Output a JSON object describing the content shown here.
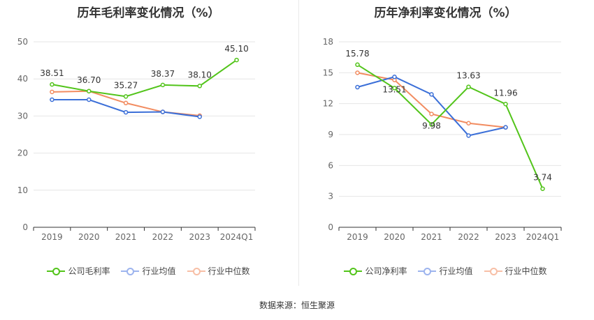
{
  "source": "数据来源：恒生聚源",
  "charts": [
    {
      "id": "left",
      "title": "历年毛利率变化情况（%）",
      "ylim": [
        0,
        50
      ],
      "yticks": [
        0,
        10,
        20,
        30,
        40,
        50
      ],
      "categories": [
        "2019",
        "2020",
        "2021",
        "2022",
        "2023",
        "2024Q1"
      ],
      "legend": [
        "公司毛利率",
        "行业均值",
        "行业中位数"
      ]
    },
    {
      "id": "right",
      "title": "历年净利率变化情况（%）",
      "ylim": [
        0,
        18
      ],
      "yticks": [
        0,
        3,
        6,
        9,
        12,
        15,
        18
      ],
      "categories": [
        "2019",
        "2020",
        "2021",
        "2022",
        "2023",
        "2024Q1"
      ],
      "legend": [
        "公司净利率",
        "行业均值",
        "行业中位数"
      ]
    }
  ],
  "chart_data": [
    {
      "type": "line",
      "title": "历年毛利率变化情况（%）",
      "categories": [
        "2019",
        "2020",
        "2021",
        "2022",
        "2023",
        "2024Q1"
      ],
      "ylim": [
        0,
        50
      ],
      "grid": true,
      "legend_position": "bottom",
      "series": [
        {
          "name": "公司毛利率",
          "color": "#52c41a",
          "values": [
            38.51,
            36.7,
            35.27,
            38.37,
            38.1,
            45.1
          ],
          "labels": [
            "38.51",
            "36.70",
            "35.27",
            "38.37",
            "38.10",
            "45.10"
          ]
        },
        {
          "name": "行业均值",
          "color": "#3b6fd8",
          "values": [
            34.4,
            34.4,
            31.0,
            31.1,
            29.8,
            null
          ]
        },
        {
          "name": "行业中位数",
          "color": "#f28c60",
          "values": [
            36.5,
            36.7,
            33.5,
            31.1,
            30.1,
            null
          ]
        }
      ]
    },
    {
      "type": "line",
      "title": "历年净利率变化情况（%）",
      "categories": [
        "2019",
        "2020",
        "2021",
        "2022",
        "2023",
        "2024Q1"
      ],
      "ylim": [
        0,
        18
      ],
      "grid": true,
      "legend_position": "bottom",
      "series": [
        {
          "name": "公司净利率",
          "color": "#52c41a",
          "values": [
            15.78,
            13.51,
            9.98,
            13.63,
            11.96,
            3.74
          ],
          "labels": [
            "15.78",
            "13.51",
            "9.98",
            "13.63",
            "11.96",
            "3.74"
          ]
        },
        {
          "name": "行业均值",
          "color": "#3b6fd8",
          "values": [
            13.6,
            14.6,
            12.9,
            8.9,
            9.7,
            null
          ]
        },
        {
          "name": "行业中位数",
          "color": "#f28c60",
          "values": [
            15.0,
            14.3,
            11.0,
            10.1,
            9.7,
            null
          ]
        }
      ]
    }
  ]
}
